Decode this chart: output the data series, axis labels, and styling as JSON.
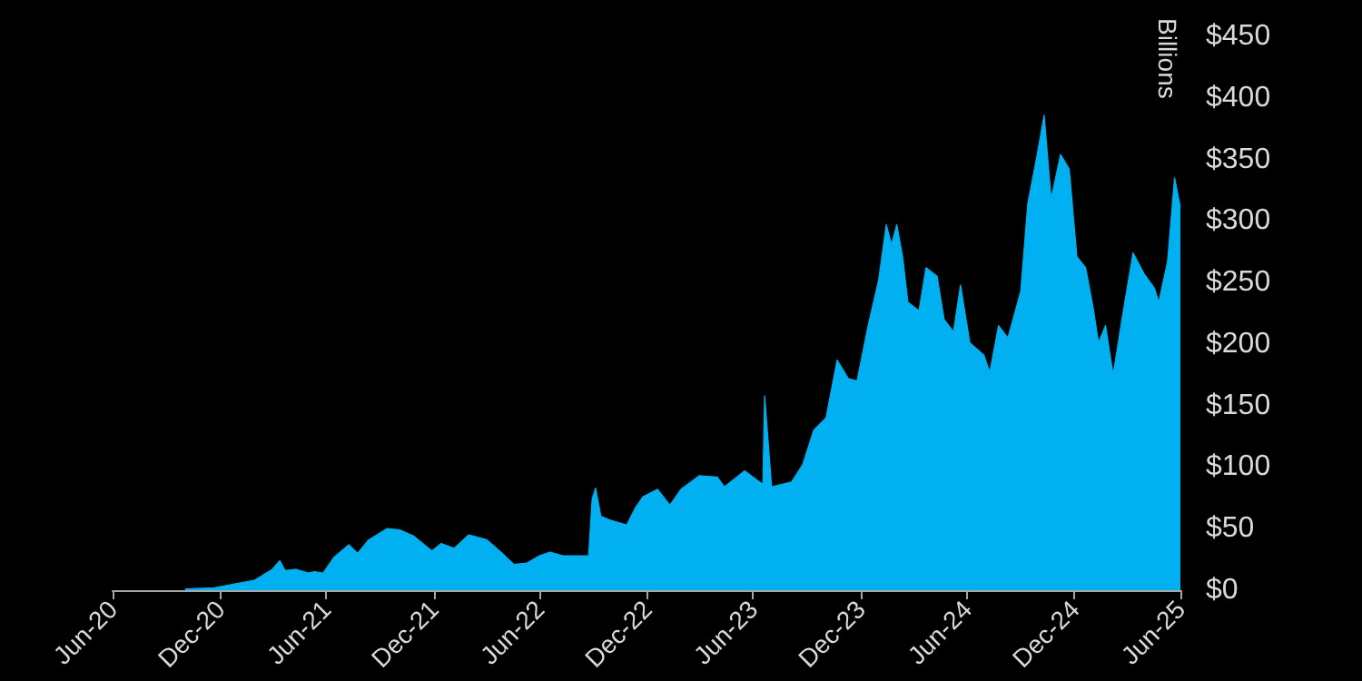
{
  "chart_data": {
    "type": "area",
    "ylabel": "Billions",
    "grid": false,
    "xlim": [
      "2020-06-30",
      "2025-06-30"
    ],
    "xticks": [
      {
        "value": "2020-06-30",
        "label": "Jun-20"
      },
      {
        "value": "2020-12-31",
        "label": "Dec-20"
      },
      {
        "value": "2021-06-30",
        "label": "Jun-21"
      },
      {
        "value": "2021-12-31",
        "label": "Dec-21"
      },
      {
        "value": "2022-06-30",
        "label": "Jun-22"
      },
      {
        "value": "2022-12-31",
        "label": "Dec-22"
      },
      {
        "value": "2023-06-30",
        "label": "Jun-23"
      },
      {
        "value": "2023-12-31",
        "label": "Dec-23"
      },
      {
        "value": "2024-06-30",
        "label": "Jun-24"
      },
      {
        "value": "2024-12-31",
        "label": "Dec-24"
      },
      {
        "value": "2025-06-30",
        "label": "Jun-25"
      }
    ],
    "ylim": [
      0,
      450
    ],
    "yticks": [
      {
        "value": 0,
        "label": "$0"
      },
      {
        "value": 50,
        "label": "$50"
      },
      {
        "value": 100,
        "label": "$100"
      },
      {
        "value": 150,
        "label": "$150"
      },
      {
        "value": 200,
        "label": "$200"
      },
      {
        "value": 250,
        "label": "$250"
      },
      {
        "value": 300,
        "label": "$300"
      },
      {
        "value": 350,
        "label": "$350"
      },
      {
        "value": 400,
        "label": "$400"
      },
      {
        "value": 450,
        "label": "$450"
      }
    ],
    "x": [
      "2020-11-01",
      "2020-12-21",
      "2021-02-27",
      "2021-03-30",
      "2021-04-12",
      "2021-04-21",
      "2021-05-10",
      "2021-05-31",
      "2021-06-10",
      "2021-06-25",
      "2021-07-14",
      "2021-08-08",
      "2021-08-23",
      "2021-09-11",
      "2021-10-12",
      "2021-11-03",
      "2021-11-27",
      "2021-12-28",
      "2022-01-13",
      "2022-02-04",
      "2022-03-01",
      "2022-04-01",
      "2022-04-25",
      "2022-05-17",
      "2022-06-08",
      "2022-06-30",
      "2022-07-18",
      "2022-08-09",
      "2022-09-22",
      "2022-09-28",
      "2022-10-04",
      "2022-10-13",
      "2022-10-29",
      "2022-11-26",
      "2022-12-11",
      "2022-12-24",
      "2023-01-18",
      "2023-02-08",
      "2023-02-27",
      "2023-03-30",
      "2023-04-30",
      "2023-05-12",
      "2023-06-16",
      "2023-07-17",
      "2023-07-20",
      "2023-08-01",
      "2023-09-04",
      "2023-09-23",
      "2023-10-12",
      "2023-11-02",
      "2023-11-21",
      "2023-12-10",
      "2023-12-25",
      "2024-01-13",
      "2024-01-31",
      "2024-02-13",
      "2024-02-22",
      "2024-03-02",
      "2024-03-12",
      "2024-03-21",
      "2024-04-09",
      "2024-04-21",
      "2024-05-10",
      "2024-05-22",
      "2024-06-07",
      "2024-06-19",
      "2024-07-05",
      "2024-07-29",
      "2024-08-08",
      "2024-08-23",
      "2024-09-08",
      "2024-09-30",
      "2024-10-12",
      "2024-10-27",
      "2024-11-09",
      "2024-11-21",
      "2024-12-07",
      "2024-12-22",
      "2025-01-04",
      "2025-01-19",
      "2025-02-01",
      "2025-02-10",
      "2025-02-22",
      "2025-03-07",
      "2025-03-22",
      "2025-04-10",
      "2025-04-29",
      "2025-05-17",
      "2025-05-24",
      "2025-06-08",
      "2025-06-20",
      "2025-06-30"
    ],
    "series": [
      {
        "color": "#00b0f0",
        "values": [
          1,
          2,
          8,
          17,
          24,
          16,
          17,
          14,
          15,
          14,
          27,
          37,
          30,
          41,
          50,
          49,
          44,
          32,
          38,
          34,
          45,
          41,
          31,
          21,
          22,
          28,
          31,
          28,
          28,
          74,
          83,
          60,
          57,
          53,
          67,
          76,
          82,
          69,
          82,
          93,
          92,
          84,
          97,
          86,
          158,
          84,
          88,
          102,
          130,
          140,
          187,
          172,
          170,
          215,
          252,
          297,
          281,
          297,
          271,
          234,
          227,
          262,
          255,
          220,
          210,
          248,
          201,
          191,
          177,
          215,
          205,
          243,
          314,
          351,
          386,
          318,
          354,
          342,
          271,
          262,
          229,
          201,
          215,
          175,
          220,
          274,
          257,
          245,
          234,
          267,
          335,
          311
        ]
      }
    ]
  }
}
